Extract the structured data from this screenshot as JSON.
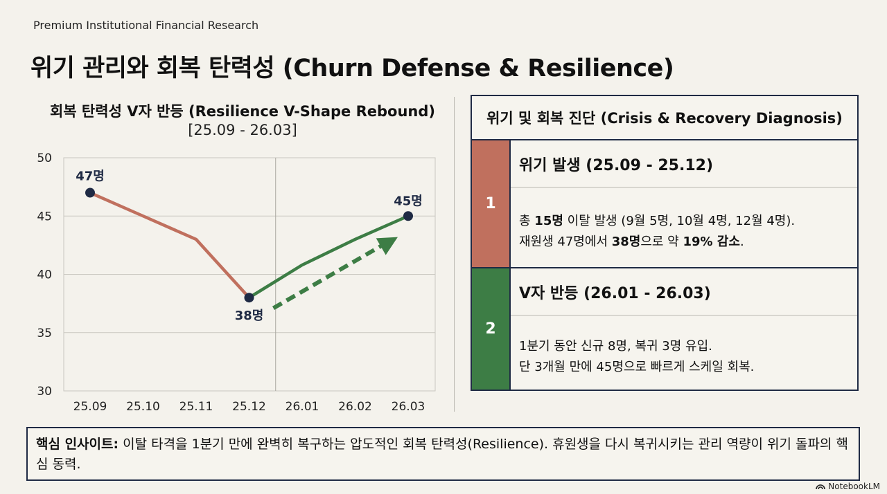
{
  "eyebrow": "Premium Institutional Financial Research",
  "page_title": "위기 관리와 회복 탄력성 (Churn Defense & Resilience)",
  "chart_title": "회복 탄력성 V자 반등 (Resilience V-Shape Rebound)",
  "chart_range": "[25.09 - 26.03]",
  "chart_data": {
    "type": "line",
    "categories": [
      "25.09",
      "25.10",
      "25.11",
      "25.12",
      "26.01",
      "26.02",
      "26.03"
    ],
    "series": [
      {
        "values": [
          47,
          45,
          43,
          38,
          40.8,
          43,
          45
        ]
      }
    ],
    "segment_colors": {
      "decline": "#c0705e",
      "rebound": "#3d7d45"
    },
    "ylim": [
      30,
      50
    ],
    "yticks": [
      30,
      35,
      40,
      45,
      50
    ],
    "annotations": [
      {
        "category": "25.09",
        "value": 47,
        "text": "47명"
      },
      {
        "category": "25.12",
        "value": 38,
        "text": "38명"
      },
      {
        "category": "26.03",
        "value": 45,
        "text": "45명"
      }
    ],
    "trend_arrow": {
      "style": "dashed",
      "color": "#3d7d45"
    },
    "vertical_rule_at": "25.12/26.01",
    "point_color": "#1f2a44"
  },
  "diagnosis": {
    "header": "위기 및 회복 진단 (Crisis & Recovery Diagnosis)",
    "stages": [
      {
        "num": "1",
        "title": "위기 발생 (25.09 - 25.12)",
        "line1_a": "총 ",
        "line1_b": "15명",
        "line1_c": " 이탈 발생 (9월 5명, 10월 4명, 12월 4명).",
        "line2_a": "재원생 47명에서 ",
        "line2_b": "38명",
        "line2_c": "으로 약 ",
        "line2_d": "19% 감소",
        "line2_e": "."
      },
      {
        "num": "2",
        "title": "V자 반등 (26.01 - 26.03)",
        "line1": "1분기 동안 신규 8명, 복귀 3명 유입.",
        "line2": "단 3개월 만에 45명으로 빠르게 스케일 회복."
      }
    ]
  },
  "insight": {
    "label": "핵심 인사이트:",
    "text": " 이탈 타격을 1분기 만에 완벽히 복구하는 압도적인 회복 탄력성(Resilience). 휴원생을 다시 복귀시키는 관리 역량이 위기 돌파의 핵심 동력."
  },
  "watermark": "NotebookLM"
}
